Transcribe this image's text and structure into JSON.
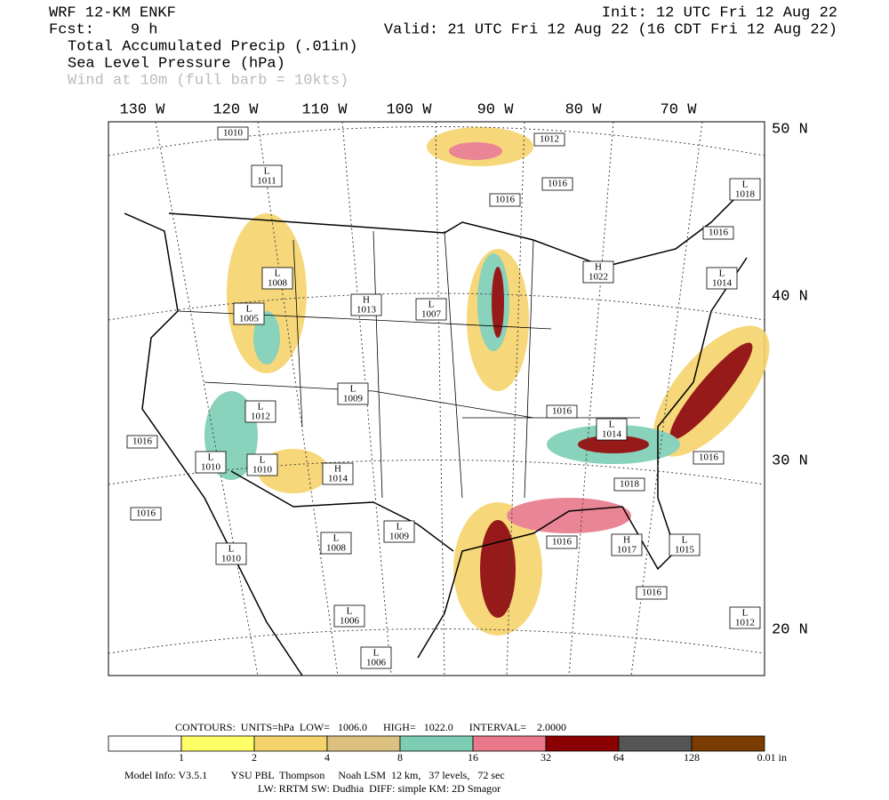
{
  "header": {
    "model": "WRF 12-KM ENKF",
    "fcst": "Fcst:    9 h",
    "init": "Init: 12 UTC Fri 12 Aug 22",
    "valid": "Valid: 21 UTC Fri 12 Aug 22 (16 CDT Fri 12 Aug 22)",
    "fields": [
      "Total Accumulated Precip (.01in)",
      "Sea Level Pressure (hPa)",
      "Wind at 10m (full barb = 10kts)"
    ]
  },
  "map": {
    "lon_labels": [
      "130 W",
      "120 W",
      "110 W",
      "100 W",
      "90 W",
      "80 W",
      "70 W"
    ],
    "lat_labels": [
      "50 N",
      "40 N",
      "30 N",
      "20 N"
    ],
    "pressure_labels": [
      {
        "value": "1010"
      },
      {
        "value": "1012"
      },
      {
        "kind": "L",
        "value": "1011"
      },
      {
        "value": "1016"
      },
      {
        "value": "1016"
      },
      {
        "kind": "L",
        "value": "1018"
      },
      {
        "value": "1016"
      },
      {
        "kind": "L",
        "value": "1008"
      },
      {
        "kind": "H",
        "value": "1022"
      },
      {
        "kind": "L",
        "value": "1014"
      },
      {
        "kind": "H",
        "value": "1013"
      },
      {
        "kind": "L",
        "value": "1007"
      },
      {
        "kind": "L",
        "value": "1005"
      },
      {
        "kind": "L",
        "value": "1009"
      },
      {
        "value": "1016"
      },
      {
        "kind": "L",
        "value": "1012"
      },
      {
        "kind": "L",
        "value": "1014"
      },
      {
        "value": "1016"
      },
      {
        "kind": "L",
        "value": "1010"
      },
      {
        "kind": "L",
        "value": "1010"
      },
      {
        "kind": "H",
        "value": "1014"
      },
      {
        "value": "1016"
      },
      {
        "value": "1018"
      },
      {
        "value": "1016"
      },
      {
        "kind": "L",
        "value": "1009"
      },
      {
        "kind": "L",
        "value": "1008"
      },
      {
        "value": "1016"
      },
      {
        "kind": "H",
        "value": "1017"
      },
      {
        "kind": "L",
        "value": "1015"
      },
      {
        "kind": "L",
        "value": "1010"
      },
      {
        "value": "1016"
      },
      {
        "kind": "L",
        "value": "1006"
      },
      {
        "kind": "L",
        "value": "1012"
      },
      {
        "kind": "L",
        "value": "1006"
      }
    ]
  },
  "contour_info": "CONTOURS:  UNITS=hPa  LOW=   1006.0      HIGH=   1022.0      INTERVAL=    2.0000",
  "colorbar": {
    "colors": [
      "#ffffff",
      "#ffff66",
      "#f5d36b",
      "#dcc07f",
      "#7ccdb4",
      "#e8788a",
      "#8b0000",
      "#555555",
      "#7a3c00"
    ],
    "labels": [
      "1",
      "2",
      "4",
      "8",
      "16",
      "32",
      "64",
      "128"
    ],
    "unit": "0.01 in"
  },
  "footer": [
    "Model Info: V3.5.1         YSU PBL  Thompson     Noah LSM  12 km,   37 levels,   72 sec",
    "LW: RRTM SW: Dudhia  DIFF: simple KM: 2D Smagor"
  ]
}
